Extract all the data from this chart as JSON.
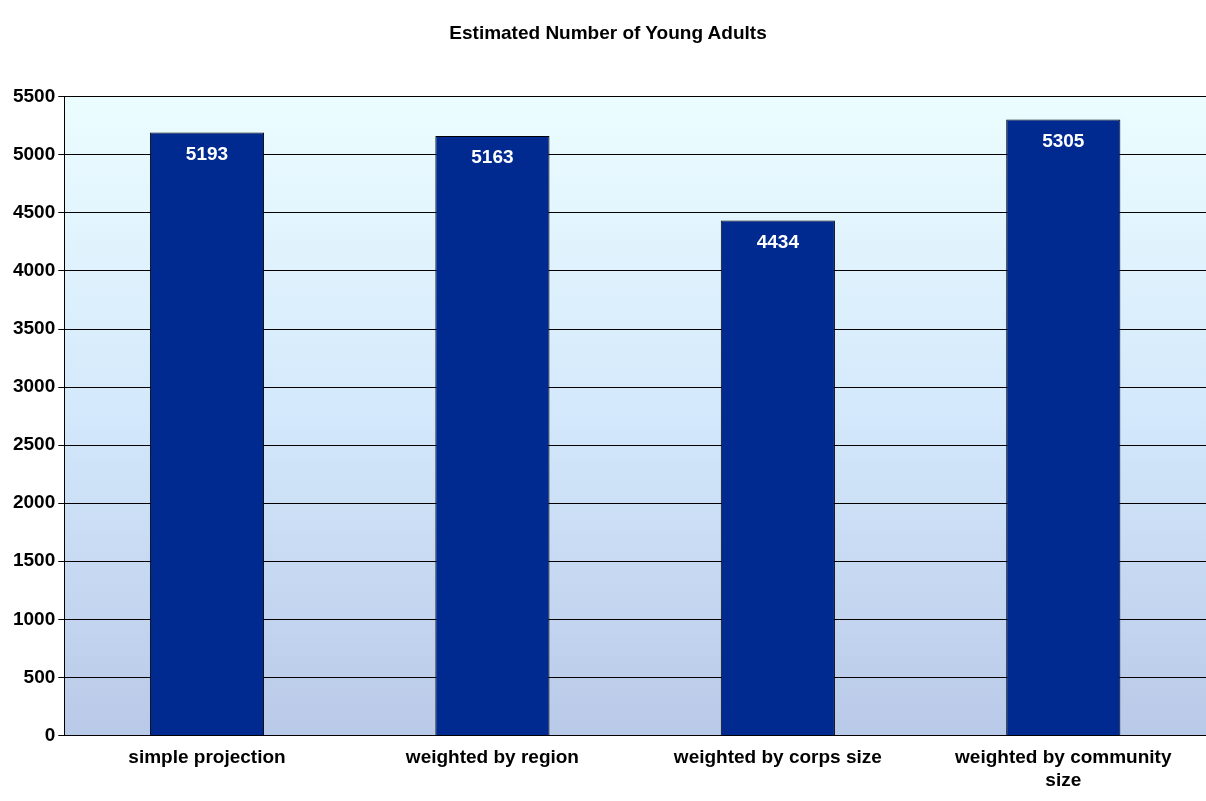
{
  "chart_data": {
    "type": "bar",
    "title": "Estimated Number of Young Adults",
    "categories": [
      "simple projection",
      "weighted by region",
      "weighted by corps size",
      "weighted by community size"
    ],
    "values": [
      5193,
      5163,
      4434,
      5305
    ],
    "color": "#002a8f",
    "ylim": [
      0,
      5500
    ],
    "yticks": [
      0,
      500,
      1000,
      1500,
      2000,
      2500,
      3000,
      3500,
      4000,
      4500,
      5000,
      5500
    ],
    "grid": "y",
    "data_labels": true
  }
}
